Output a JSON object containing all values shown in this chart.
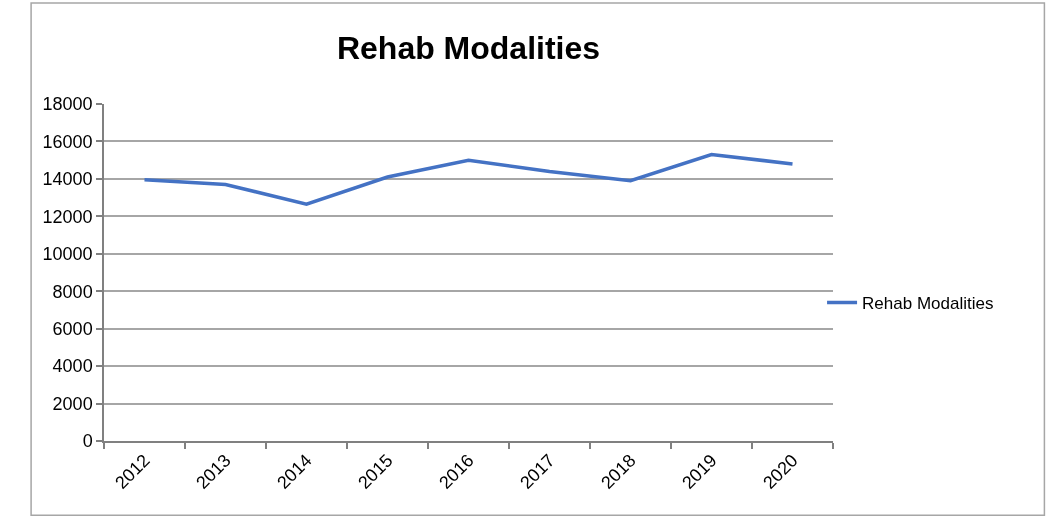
{
  "chart_data": {
    "type": "line",
    "title": "Rehab Modalities",
    "categories": [
      "2012",
      "2013",
      "2014",
      "2015",
      "2016",
      "2017",
      "2018",
      "2019",
      "2020"
    ],
    "series": [
      {
        "name": "Rehab Modalities",
        "color": "#4472c4",
        "values": [
          13950,
          13700,
          12650,
          14100,
          15000,
          14400,
          13900,
          15300,
          14800
        ]
      }
    ],
    "ylim": [
      0,
      18000
    ],
    "yticks": [
      0,
      2000,
      4000,
      6000,
      8000,
      10000,
      12000,
      14000,
      16000,
      18000
    ],
    "grid": "y",
    "legend": "right",
    "marker": "none",
    "line_style": "solid"
  }
}
